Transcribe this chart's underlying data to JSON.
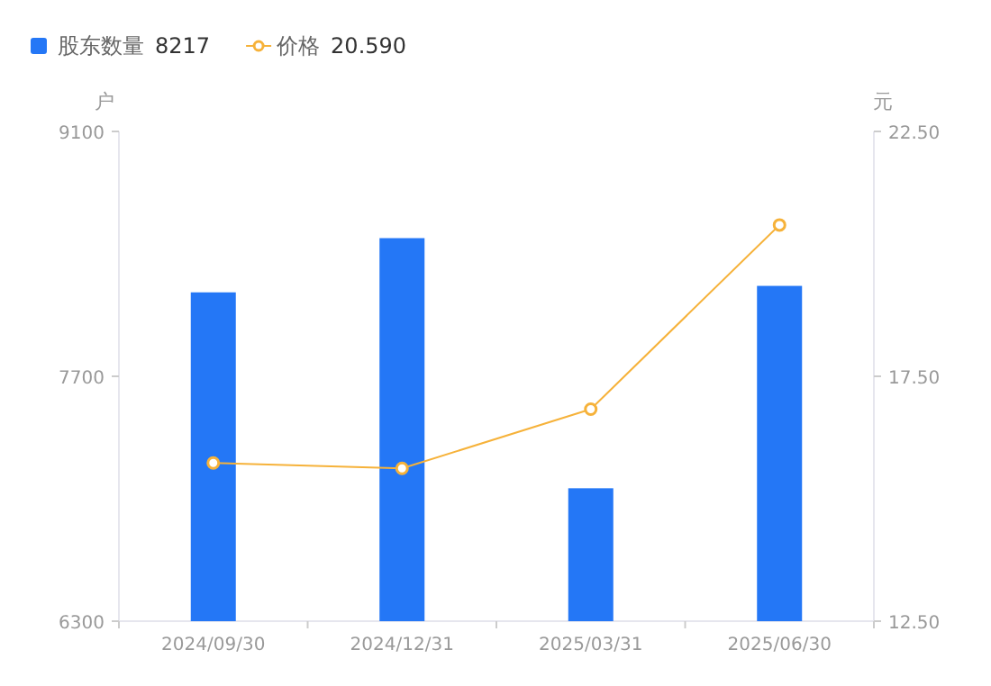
{
  "chart_data": {
    "type": "bar",
    "ylabel": "户",
    "y2label": "元",
    "categories": [
      "2024/09/30",
      "2024/12/31",
      "2025/03/31",
      "2025/06/30"
    ],
    "series": [
      {
        "name": "股东数量",
        "color": "#2477f6",
        "values": [
          8180,
          8490,
          7060,
          8217
        ]
      },
      {
        "name": "价格",
        "type": "line",
        "axis": "y2",
        "color": "#f6b23a",
        "marker": "circle",
        "values": [
          15.73,
          15.62,
          16.83,
          20.59
        ]
      }
    ],
    "annotations": [
      "8217",
      "20.590"
    ],
    "ylim": [
      6300,
      9100
    ],
    "yticks": [
      6300,
      7700,
      9100
    ],
    "y2lim": [
      12.5,
      22.5
    ],
    "y2ticks": [
      {
        "value": 12.5,
        "label": "12.50"
      },
      {
        "value": 17.5,
        "label": "17.50"
      },
      {
        "value": 22.5,
        "label": "22.50"
      }
    ],
    "legend": "top left",
    "grid": false
  }
}
